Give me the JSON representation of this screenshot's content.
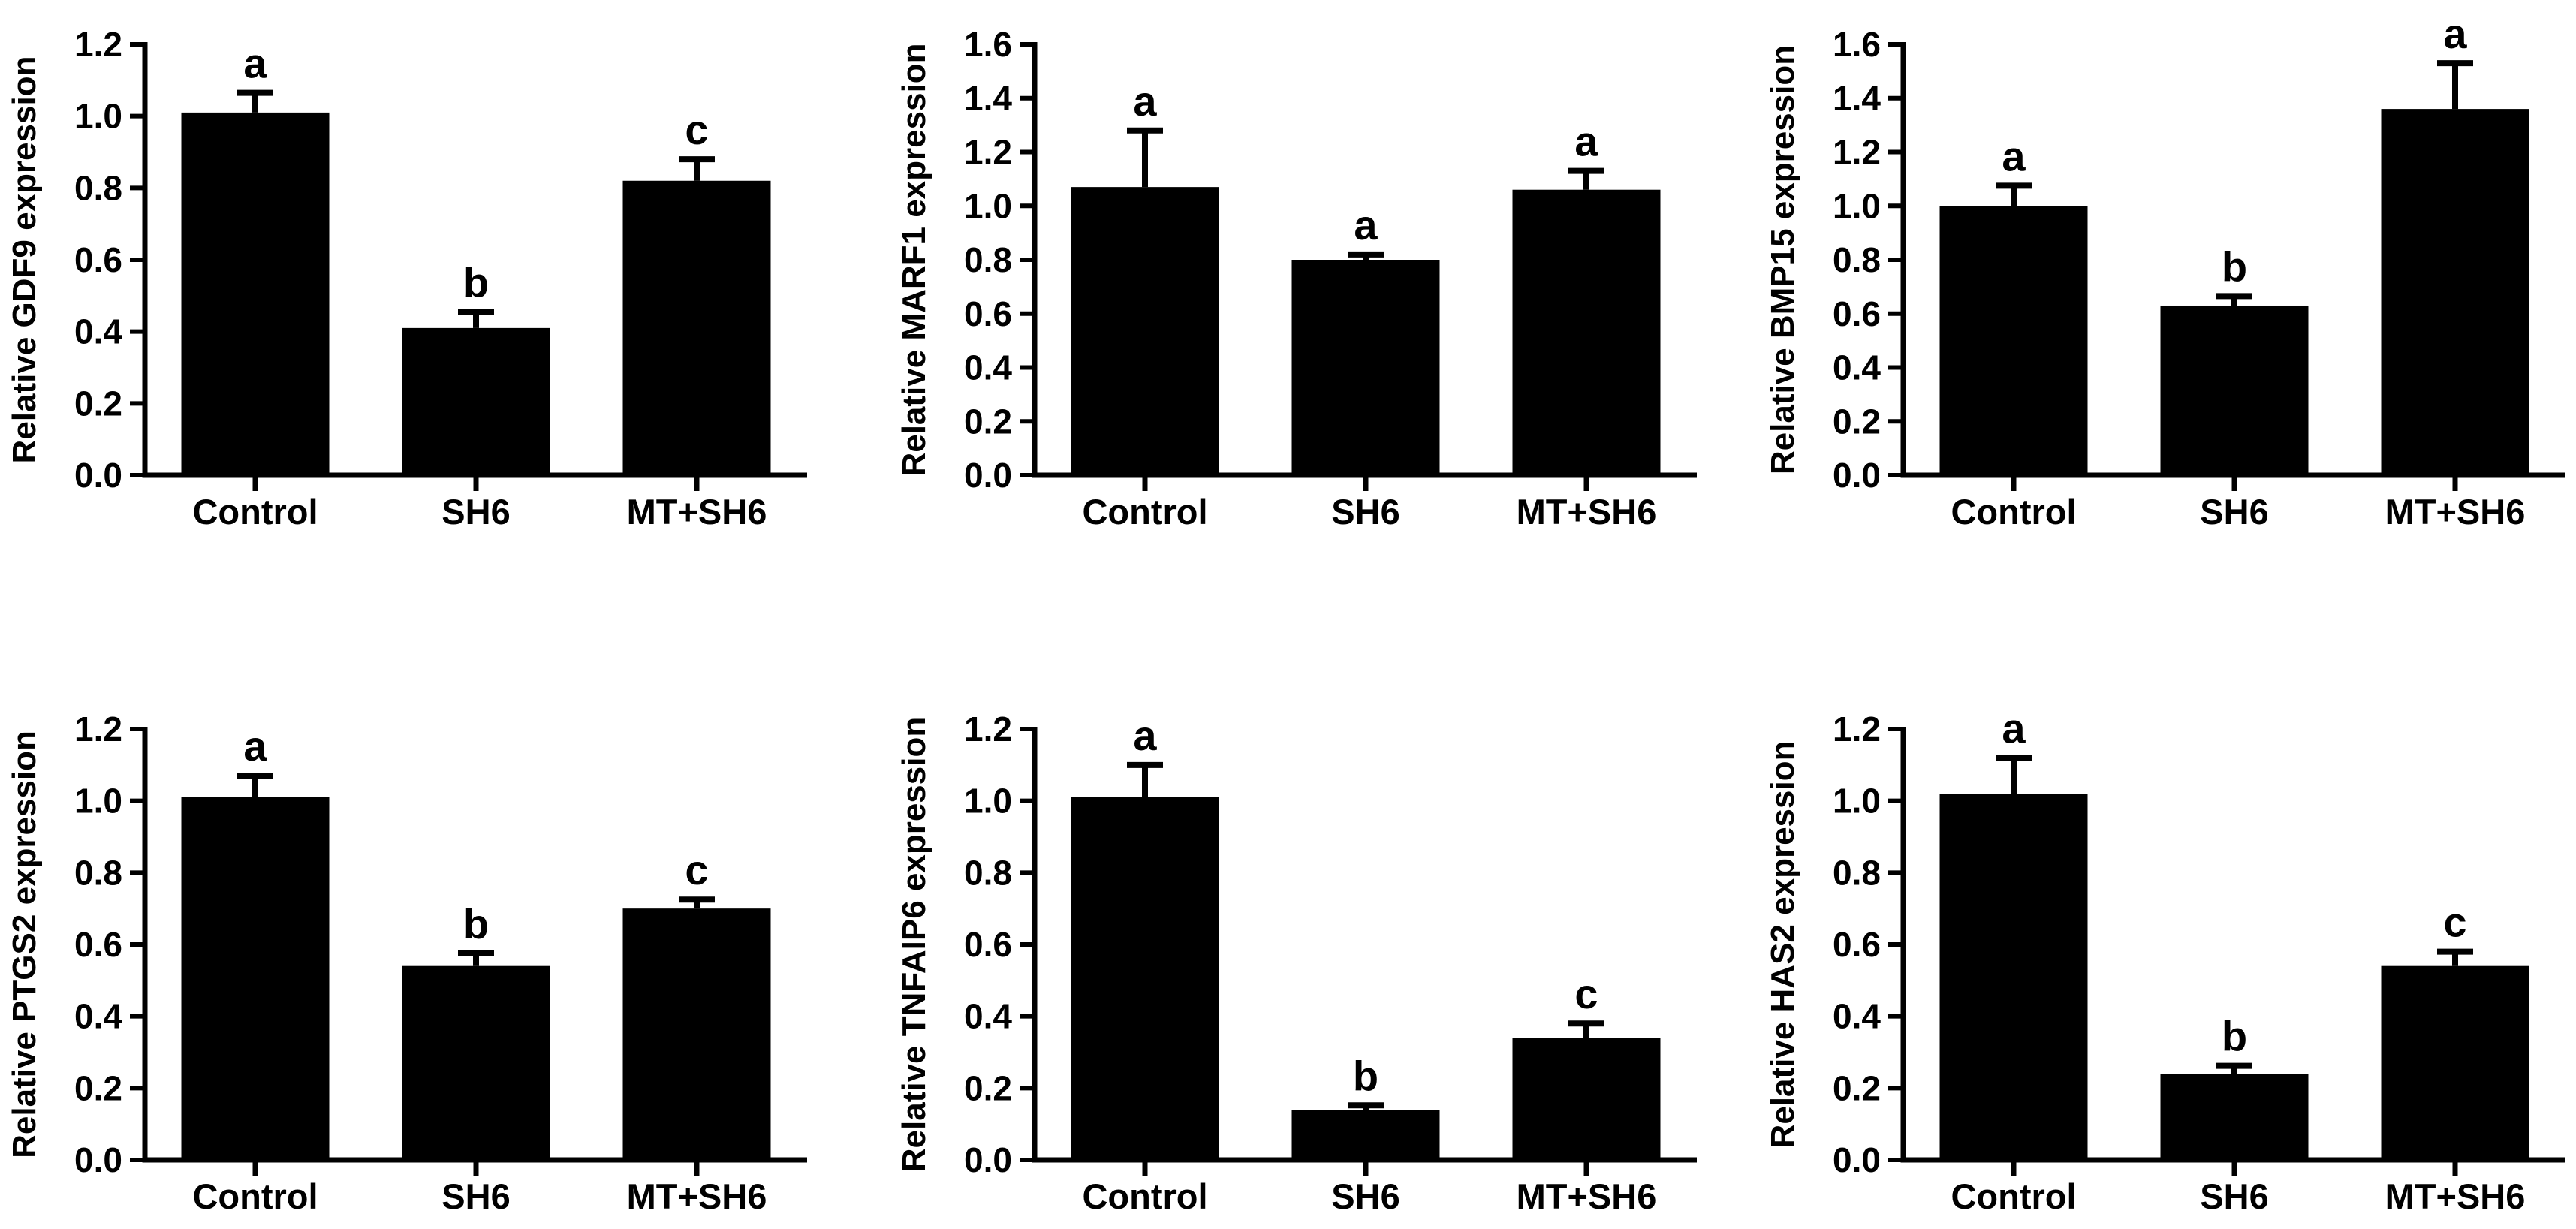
{
  "page": {
    "background": "#ffffff",
    "bar_color": "#000000",
    "axis_color": "#000000",
    "text_color": "#000000"
  },
  "chart_data": [
    {
      "type": "bar",
      "id": "gdf9",
      "ylabel": "Relative GDF9 expression",
      "categories": [
        "Control",
        "SH6",
        "MT+SH6"
      ],
      "values": [
        1.01,
        0.41,
        0.82
      ],
      "errors": [
        0.055,
        0.045,
        0.06
      ],
      "sig_letters": [
        "a",
        "b",
        "c"
      ],
      "ylim": [
        0,
        1.2
      ],
      "ytick_step": 0.2,
      "ytick_decimals": 1,
      "grid": false,
      "legend": "none",
      "bar_color": "#000000",
      "row": 0,
      "col": 0
    },
    {
      "type": "bar",
      "id": "marf1",
      "ylabel": "Relative MARF1 expression",
      "categories": [
        "Control",
        "SH6",
        "MT+SH6"
      ],
      "values": [
        1.07,
        0.8,
        1.06
      ],
      "errors": [
        0.21,
        0.02,
        0.07
      ],
      "sig_letters": [
        "a",
        "a",
        "a"
      ],
      "ylim": [
        0,
        1.6
      ],
      "ytick_step": 0.2,
      "ytick_decimals": 1,
      "grid": false,
      "legend": "none",
      "bar_color": "#000000",
      "row": 0,
      "col": 1
    },
    {
      "type": "bar",
      "id": "bmp15",
      "ylabel": "Relative BMP15 expression",
      "categories": [
        "Control",
        "SH6",
        "MT+SH6"
      ],
      "values": [
        1.0,
        0.63,
        1.36
      ],
      "errors": [
        0.075,
        0.035,
        0.17
      ],
      "sig_letters": [
        "a",
        "b",
        "a"
      ],
      "ylim": [
        0,
        1.6
      ],
      "ytick_step": 0.2,
      "ytick_decimals": 1,
      "grid": false,
      "legend": "none",
      "bar_color": "#000000",
      "row": 0,
      "col": 2
    },
    {
      "type": "bar",
      "id": "ptgs2",
      "ylabel": "Relative PTGS2 expression",
      "categories": [
        "Control",
        "SH6",
        "MT+SH6"
      ],
      "values": [
        1.01,
        0.54,
        0.7
      ],
      "errors": [
        0.06,
        0.035,
        0.025
      ],
      "sig_letters": [
        "a",
        "b",
        "c"
      ],
      "ylim": [
        0,
        1.2
      ],
      "ytick_step": 0.2,
      "ytick_decimals": 1,
      "grid": false,
      "legend": "none",
      "bar_color": "#000000",
      "row": 1,
      "col": 0
    },
    {
      "type": "bar",
      "id": "tnfaip6",
      "ylabel": "Relative TNFAIP6 expression",
      "categories": [
        "Control",
        "SH6",
        "MT+SH6"
      ],
      "values": [
        1.01,
        0.14,
        0.34
      ],
      "errors": [
        0.09,
        0.012,
        0.04
      ],
      "sig_letters": [
        "a",
        "b",
        "c"
      ],
      "ylim": [
        0,
        1.2
      ],
      "ytick_step": 0.2,
      "ytick_decimals": 1,
      "grid": false,
      "legend": "none",
      "bar_color": "#000000",
      "row": 1,
      "col": 1
    },
    {
      "type": "bar",
      "id": "has2",
      "ylabel": "Relative HAS2 expression",
      "categories": [
        "Control",
        "SH6",
        "MT+SH6"
      ],
      "values": [
        1.02,
        0.24,
        0.54
      ],
      "errors": [
        0.1,
        0.022,
        0.04
      ],
      "sig_letters": [
        "a",
        "b",
        "c"
      ],
      "ylim": [
        0,
        1.2
      ],
      "ytick_step": 0.2,
      "ytick_decimals": 1,
      "grid": false,
      "legend": "none",
      "bar_color": "#000000",
      "row": 1,
      "col": 2
    }
  ]
}
